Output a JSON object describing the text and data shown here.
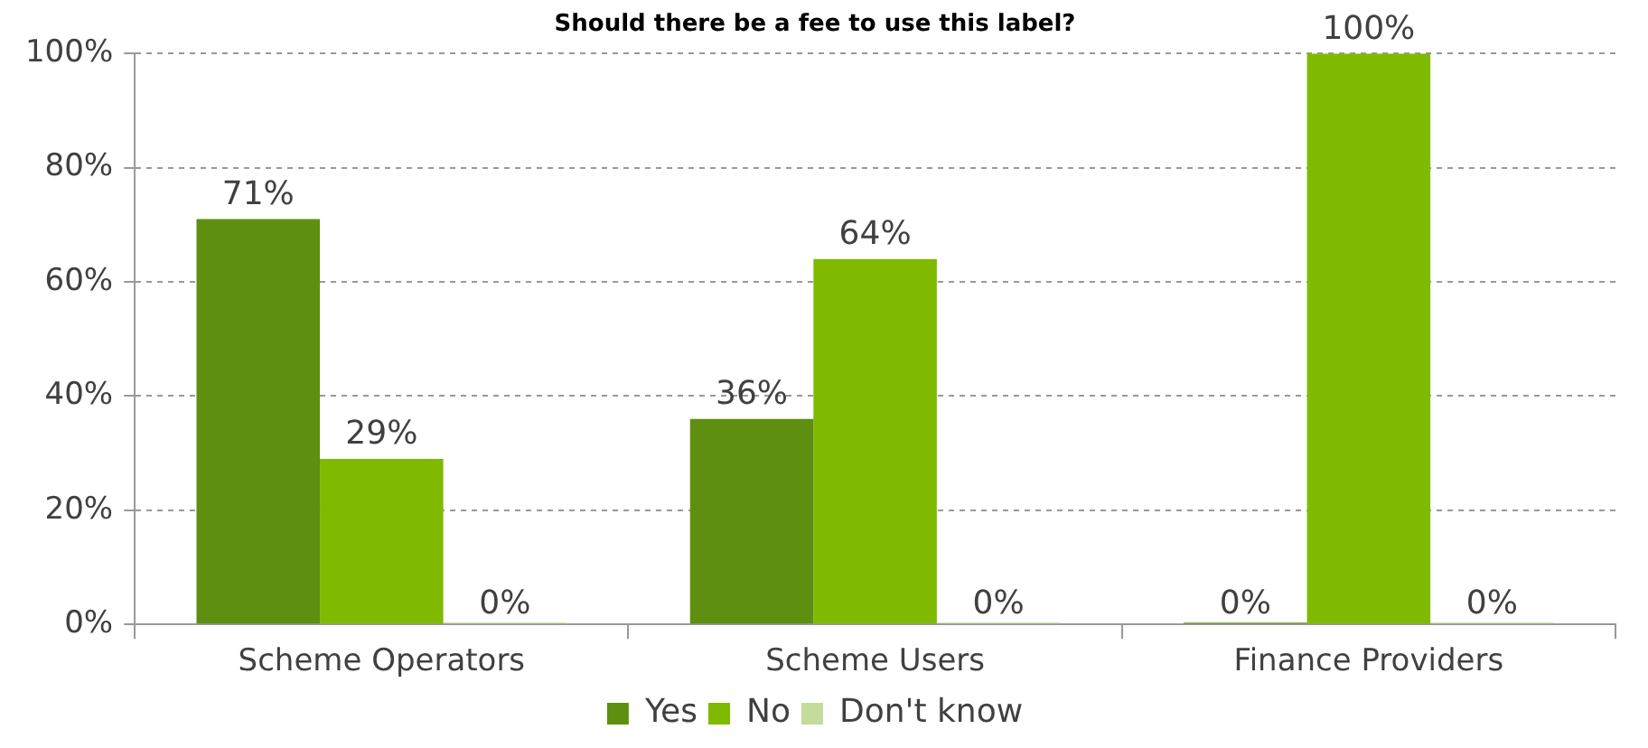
{
  "chart_data": {
    "type": "bar",
    "title": "Should there be a fee to use this label?",
    "categories": [
      "Scheme Operators",
      "Scheme Users",
      "Finance Providers"
    ],
    "series": [
      {
        "name": "Yes",
        "color": "#5f8f10",
        "values": [
          71,
          36,
          0
        ],
        "value_labels": [
          "71%",
          "36%",
          "0%"
        ]
      },
      {
        "name": "No",
        "color": "#7fba00",
        "values": [
          29,
          64,
          100
        ],
        "value_labels": [
          "29%",
          "64%",
          "100%"
        ]
      },
      {
        "name": "Don't know",
        "color": "#c3dc9c",
        "values": [
          0,
          0,
          0
        ],
        "value_labels": [
          "0%",
          "0%",
          "0%"
        ]
      }
    ],
    "ylim": [
      0,
      100
    ],
    "yticks": [
      {
        "value": 0,
        "label": "0%"
      },
      {
        "value": 20,
        "label": "20%"
      },
      {
        "value": 40,
        "label": "40%"
      },
      {
        "value": 60,
        "label": "60%"
      },
      {
        "value": 80,
        "label": "80%"
      },
      {
        "value": 100,
        "label": "100%"
      }
    ],
    "grid": "y",
    "legend": "bottom"
  }
}
